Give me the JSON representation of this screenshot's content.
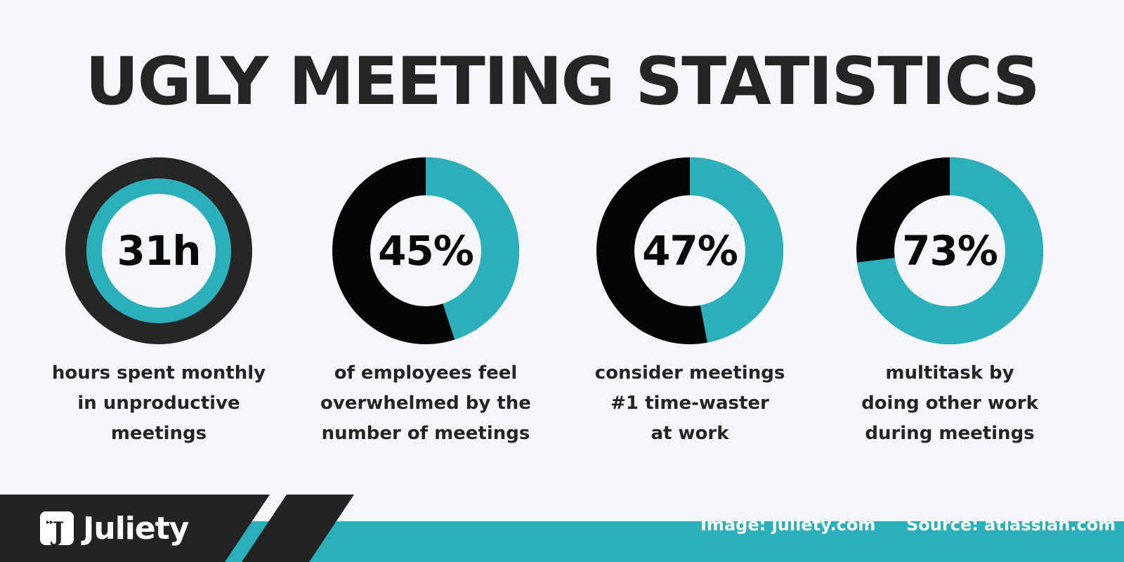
{
  "title": "UGLY MEETING STATISTICS",
  "colors": {
    "background": "#f4f6fa",
    "accent": "#2aafbb",
    "dark": "#050505",
    "ring_dark": "#262626",
    "footer_dark": "#232323"
  },
  "chart_data": [
    {
      "type": "pie",
      "variant": "ring",
      "value_label": "31h",
      "caption_lines": [
        "hours spent monthly",
        "in unproductive",
        "meetings"
      ]
    },
    {
      "type": "pie",
      "variant": "donut",
      "value": 45,
      "value_label": "45%",
      "caption_lines": [
        "of employees feel",
        "overwhelmed by the",
        "number of meetings"
      ]
    },
    {
      "type": "pie",
      "variant": "donut",
      "value": 47,
      "value_label": "47%",
      "caption_lines": [
        "consider meetings",
        "#1 time-waster",
        "at work"
      ]
    },
    {
      "type": "pie",
      "variant": "donut",
      "value": 73,
      "value_label": "73%",
      "caption_lines": [
        "multitask by",
        "doing other work",
        "during meetings"
      ]
    }
  ],
  "footer": {
    "brand": "Juliety",
    "logo_letter": "J",
    "image_credit": "Image: juliety.com",
    "source": "Source: atlassian.com"
  }
}
